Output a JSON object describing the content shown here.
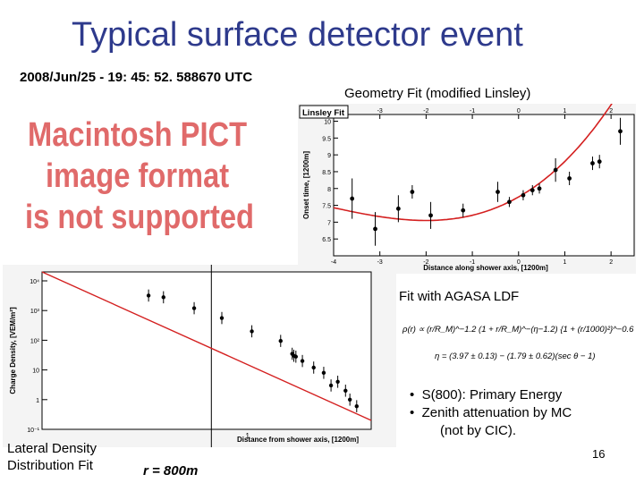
{
  "slide": {
    "title": "Typical surface detector event",
    "timestamp": "2008/Jun/25 - 19: 45: 52. 588670 UTC",
    "pict_placeholder": [
      "Macintosh PICT",
      "image format",
      "is not supported"
    ],
    "geometry_label": "Geometry Fit (modified Linsley)",
    "agasa_label": "Fit with AGASA LDF",
    "bullets": [
      "S(800): Primary Energy",
      "Zenith attenuation by MC",
      "(not by CIC)."
    ],
    "lateral_label": [
      "Lateral Density",
      "Distribution Fit"
    ],
    "r_label": "r = 800m",
    "page_number": "16",
    "formula_rho": "ρ(r) ∝ (r/R_M)^−1.2 (1 + r/R_M)^−(η−1.2) {1 + (r/1000)²}^−0.6",
    "formula_eta": "η = (3.97 ± 0.13) − (1.79 ± 0.62)(sec θ − 1)"
  },
  "chart_data": [
    {
      "type": "scatter",
      "legend": "Linsley Fit",
      "xlabel": "Distance along shower axis, [1200m]",
      "ylabel": "Onset time, [1200m]",
      "xlim": [
        -4,
        2.5
      ],
      "ylim": [
        6.0,
        10.2
      ],
      "xticks": [
        -4,
        -3,
        -2,
        -1,
        0,
        1,
        2
      ],
      "yticks": [
        6.5,
        7,
        7.5,
        8,
        8.5,
        9,
        9.5,
        10
      ],
      "top_ticks": [
        "-3",
        "-2",
        "-1",
        "0",
        "1",
        "2"
      ],
      "bottom_ticks": [
        "-4",
        "-3",
        "-2",
        "-1",
        "0",
        "1",
        "2"
      ],
      "y_ticklabels": [
        "6.5",
        "7",
        "7.5",
        "8",
        "8.5",
        "9",
        "9.5",
        "10"
      ],
      "points": [
        {
          "x": -3.6,
          "y": 7.7,
          "err": 0.6
        },
        {
          "x": -3.1,
          "y": 6.8,
          "err": 0.5
        },
        {
          "x": -2.6,
          "y": 7.4,
          "err": 0.4
        },
        {
          "x": -2.3,
          "y": 7.9,
          "err": 0.2
        },
        {
          "x": -1.9,
          "y": 7.2,
          "err": 0.4
        },
        {
          "x": -1.2,
          "y": 7.35,
          "err": 0.2
        },
        {
          "x": -0.45,
          "y": 7.9,
          "err": 0.3
        },
        {
          "x": -0.2,
          "y": 7.6,
          "err": 0.15
        },
        {
          "x": 0.1,
          "y": 7.8,
          "err": 0.15
        },
        {
          "x": 0.3,
          "y": 7.95,
          "err": 0.15
        },
        {
          "x": 0.45,
          "y": 8.0,
          "err": 0.15
        },
        {
          "x": 0.8,
          "y": 8.55,
          "err": 0.35
        },
        {
          "x": 1.1,
          "y": 8.3,
          "err": 0.2
        },
        {
          "x": 1.6,
          "y": 8.75,
          "err": 0.2
        },
        {
          "x": 1.75,
          "y": 8.8,
          "err": 0.2
        },
        {
          "x": 2.2,
          "y": 9.7,
          "err": 0.4
        }
      ],
      "fit_curve": {
        "x0": -2.0,
        "y0": 7.05,
        "a": 0.135,
        "b": 0.02
      }
    },
    {
      "type": "scatter",
      "xlabel": "Distance from shower axis, [1200m]",
      "ylabel": "Charge Density, [VEM/m²]",
      "xscale": "log",
      "yscale": "log",
      "xlim": [
        0.1,
        4
      ],
      "ylim": [
        0.1,
        20000
      ],
      "yticklabels": [
        "10⁴",
        "10³",
        "10²",
        "10",
        "1",
        "10⁻¹"
      ],
      "xticklabel": "1",
      "vertical_marker": 0.667,
      "points": [
        {
          "x": 0.33,
          "y": 3200
        },
        {
          "x": 0.39,
          "y": 2800
        },
        {
          "x": 0.55,
          "y": 1200
        },
        {
          "x": 0.75,
          "y": 560
        },
        {
          "x": 1.05,
          "y": 200
        },
        {
          "x": 1.45,
          "y": 95
        },
        {
          "x": 1.65,
          "y": 35
        },
        {
          "x": 1.68,
          "y": 30
        },
        {
          "x": 1.72,
          "y": 28
        },
        {
          "x": 1.85,
          "y": 20
        },
        {
          "x": 2.1,
          "y": 12
        },
        {
          "x": 2.35,
          "y": 8
        },
        {
          "x": 2.55,
          "y": 3
        },
        {
          "x": 2.75,
          "y": 4
        },
        {
          "x": 3.0,
          "y": 2
        },
        {
          "x": 3.15,
          "y": 1
        },
        {
          "x": 3.4,
          "y": 0.6
        }
      ],
      "fit_line": [
        [
          0.1,
          20000
        ],
        [
          4,
          0.2
        ]
      ]
    }
  ],
  "colors": {
    "title": "#2e3a8c",
    "pict": "#e06a6a",
    "fit": "#d42020"
  }
}
